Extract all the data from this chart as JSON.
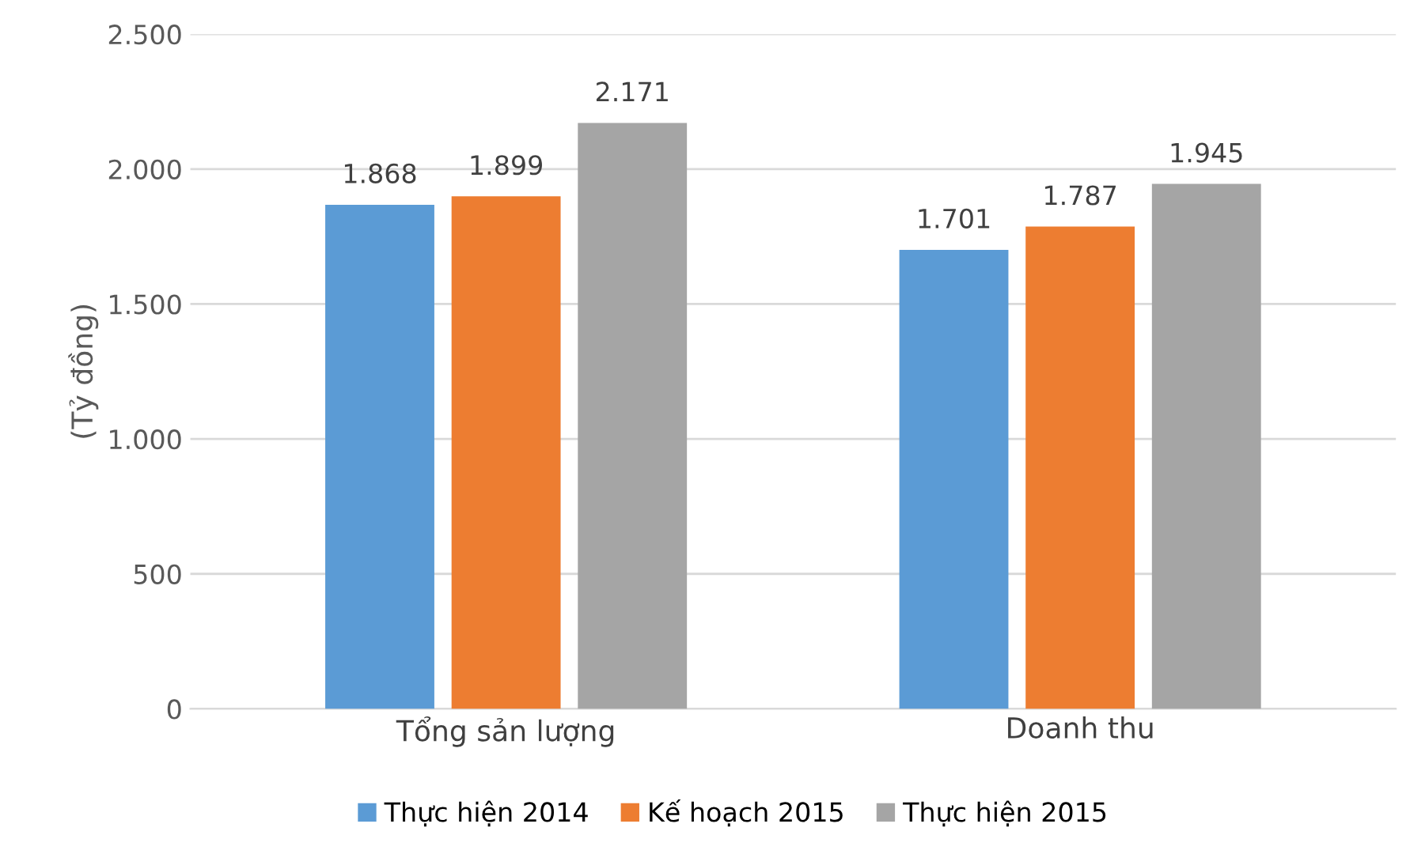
{
  "chart_data": {
    "type": "bar",
    "ylabel": "(Tỷ đồng)",
    "categories": [
      "Tổng sản lượng",
      "Doanh thu"
    ],
    "series": [
      {
        "name": "Thực hiện 2014",
        "color": "#5b9bd5",
        "values": [
          1868,
          1701
        ],
        "value_labels": [
          "1.868",
          "1.701"
        ]
      },
      {
        "name": "Kế hoạch 2015",
        "color": "#ed7d31",
        "values": [
          1899,
          1787
        ],
        "value_labels": [
          "1.899",
          "1.787"
        ]
      },
      {
        "name": "Thực hiện 2015",
        "color": "#a5a5a5",
        "values": [
          2171,
          1945
        ],
        "value_labels": [
          "2.171",
          "1.945"
        ]
      }
    ],
    "ylim": [
      0,
      2500
    ],
    "yticks": [
      {
        "value": 0,
        "label": "0"
      },
      {
        "value": 500,
        "label": "500"
      },
      {
        "value": 1000,
        "label": "1.000"
      },
      {
        "value": 1500,
        "label": "1.500"
      },
      {
        "value": 2000,
        "label": "2.000"
      },
      {
        "value": 2500,
        "label": "2.500"
      }
    ],
    "grid": "y",
    "legend": "bottom"
  }
}
